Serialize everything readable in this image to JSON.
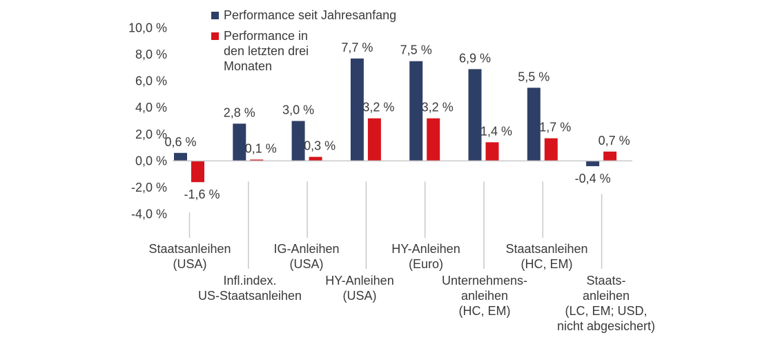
{
  "chart_data": {
    "type": "bar",
    "title": "",
    "xlabel": "",
    "ylabel": "",
    "ylim": [
      -4.0,
      10.0
    ],
    "yticks": [
      "10,0 %",
      "8,0 %",
      "6,0 %",
      "4,0 %",
      "2,0 %",
      "0,0 %",
      "-2,0 %",
      "-4,0 %"
    ],
    "ytick_values": [
      10,
      8,
      6,
      4,
      2,
      0,
      -2,
      -4
    ],
    "categories": [
      [
        "Staatsanleihen",
        "(USA)"
      ],
      [
        "Infl.index.",
        "US-Staatsanleihen"
      ],
      [
        "IG-Anleihen",
        "(USA)"
      ],
      [
        "HY-Anleihen",
        "(USA)"
      ],
      [
        "HY-Anleihen",
        "(Euro)"
      ],
      [
        "Unternehmens-",
        "anleihen",
        "(HC, EM)"
      ],
      [
        "Staatsanleihen",
        "(HC, EM)"
      ],
      [
        "Staats-",
        "anleihen",
        "(LC, EM; USD,",
        "nicht abgesichert)"
      ]
    ],
    "series": [
      {
        "name": "Performance seit Jahresanfang",
        "color": "#2e3f67",
        "values": [
          0.6,
          2.8,
          3.0,
          7.7,
          7.5,
          6.9,
          5.5,
          -0.4
        ],
        "labels": [
          "0,6 %",
          "2,8 %",
          "3,0 %",
          "7,7 %",
          "7,5 %",
          "6,9 %",
          "5,5 %",
          "-0,4 %"
        ]
      },
      {
        "name": "Performance in den letzten drei Monaten",
        "legend_lines": [
          "Performance in",
          "den letzten drei",
          "Monaten"
        ],
        "color": "#d7141c",
        "values": [
          -1.6,
          0.1,
          0.3,
          3.2,
          3.2,
          1.4,
          1.7,
          0.7
        ],
        "labels": [
          "-1,6 %",
          "0,1 %",
          "0,3 %",
          "3,2 %",
          "3,2 %",
          "1,4 %",
          "1,7 %",
          "0,7 %"
        ]
      }
    ],
    "legend": {
      "position": "top-left",
      "entries": [
        [
          "Performance seit Jahresanfang"
        ],
        [
          "Performance in",
          "den letzten drei",
          "Monaten"
        ]
      ]
    }
  }
}
